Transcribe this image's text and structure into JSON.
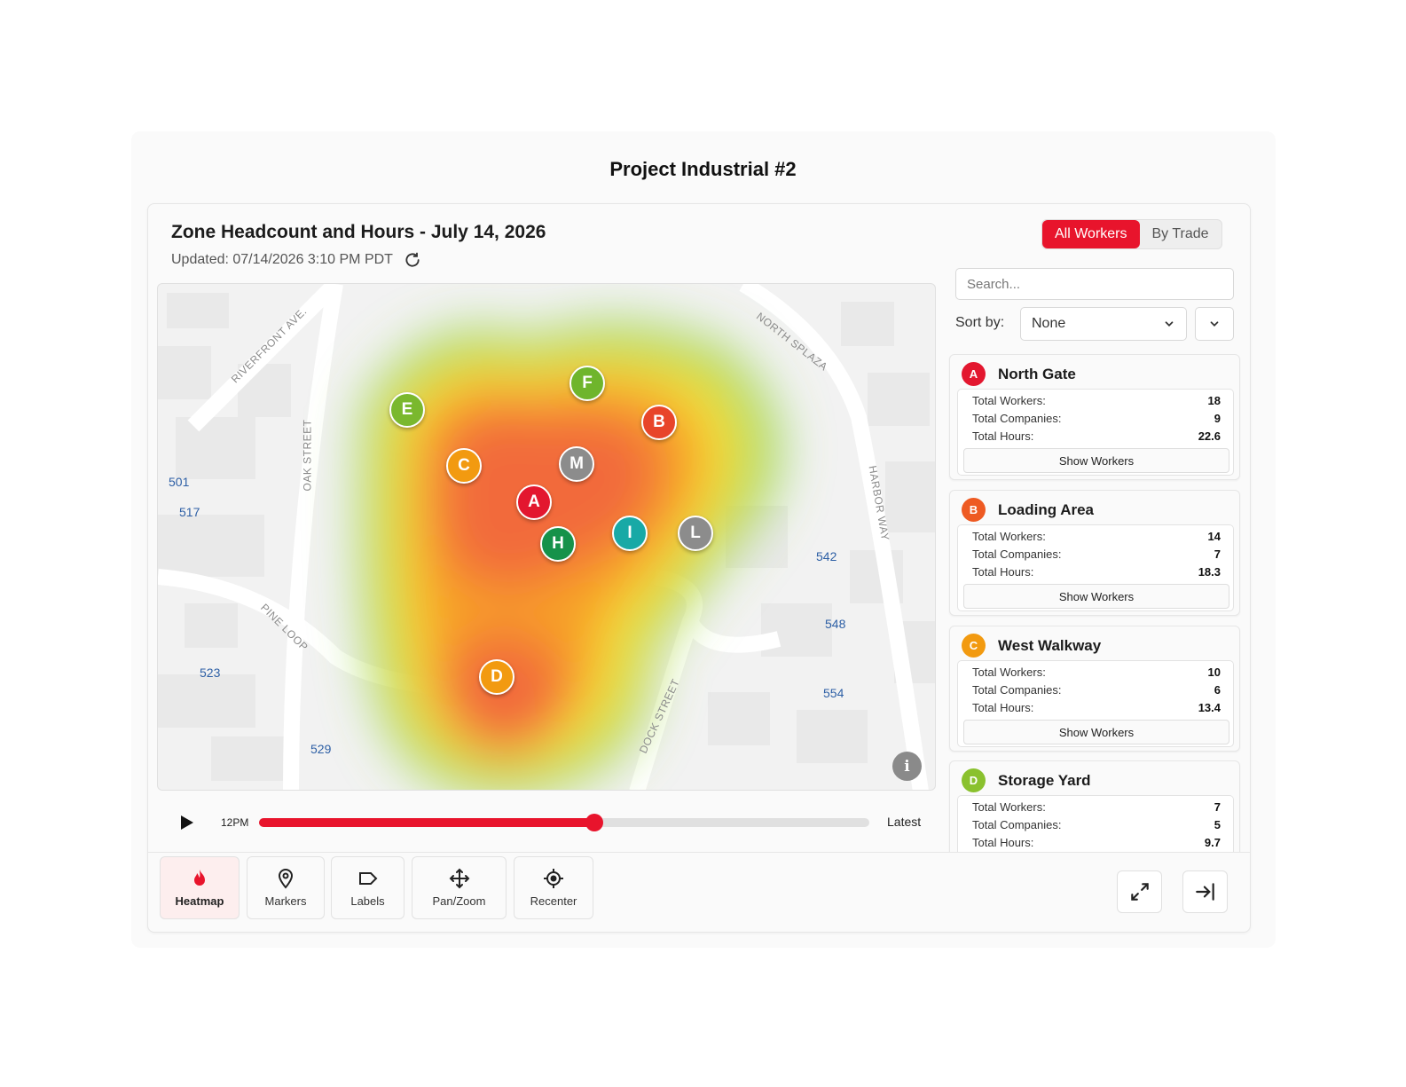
{
  "project_title": "Project Industrial #2",
  "header": {
    "title": "Zone Headcount and Hours - July 14, 2026",
    "updated": "Updated: 07/14/2026 3:10 PM PDT",
    "toggle": {
      "all_workers": "All Workers",
      "by_trade": "By Trade",
      "active": "all_workers"
    }
  },
  "map": {
    "streets": [
      "RIVERFRONT AVE.",
      "OAK STREET",
      "NORTH SPLAZA",
      "HARBOR WAY",
      "PINE LOOP",
      "DOCK STREET"
    ],
    "numbers": [
      "501",
      "517",
      "523",
      "529",
      "542",
      "548",
      "554"
    ],
    "markers": [
      {
        "letter": "F",
        "color": "#6fb52c"
      },
      {
        "letter": "E",
        "color": "#7ab82e"
      },
      {
        "letter": "B",
        "color": "#e8452a"
      },
      {
        "letter": "C",
        "color": "#f29a10"
      },
      {
        "letter": "M",
        "color": "#8c8c8c"
      },
      {
        "letter": "A",
        "color": "#e3172f"
      },
      {
        "letter": "I",
        "color": "#18a9a6"
      },
      {
        "letter": "L",
        "color": "#8c8c8c"
      },
      {
        "letter": "H",
        "color": "#16924a"
      },
      {
        "letter": "D",
        "color": "#f29a10"
      }
    ],
    "info_icon": "info-icon"
  },
  "timeline": {
    "start_label": "12PM",
    "end_label": "Latest",
    "progress": 0.55
  },
  "toolbar": {
    "tools": [
      {
        "label": "Heatmap",
        "icon": "flame-icon",
        "active": true
      },
      {
        "label": "Markers",
        "icon": "pin-icon",
        "active": false
      },
      {
        "label": "Labels",
        "icon": "tag-icon",
        "active": false
      },
      {
        "label": "Pan/Zoom",
        "icon": "move-icon",
        "active": false
      },
      {
        "label": "Recenter",
        "icon": "crosshair-icon",
        "active": false
      }
    ]
  },
  "sidebar": {
    "search_placeholder": "Search...",
    "sort_label": "Sort by:",
    "sort_value": "None",
    "row_labels": {
      "workers": "Total Workers:",
      "companies": "Total Companies:",
      "hours": "Total Hours:"
    },
    "show_workers_label": "Show Workers",
    "zones": [
      {
        "letter": "A",
        "name": "North Gate",
        "color": "#e3172f",
        "workers": "18",
        "companies": "9",
        "hours": "22.6"
      },
      {
        "letter": "B",
        "name": "Loading Area",
        "color": "#ee5a22",
        "workers": "14",
        "companies": "7",
        "hours": "18.3"
      },
      {
        "letter": "C",
        "name": "West Walkway",
        "color": "#f29a10",
        "workers": "10",
        "companies": "6",
        "hours": "13.4"
      },
      {
        "letter": "D",
        "name": "Storage Yard",
        "color": "#8ac12e",
        "workers": "7",
        "companies": "5",
        "hours": "9.7"
      }
    ]
  }
}
